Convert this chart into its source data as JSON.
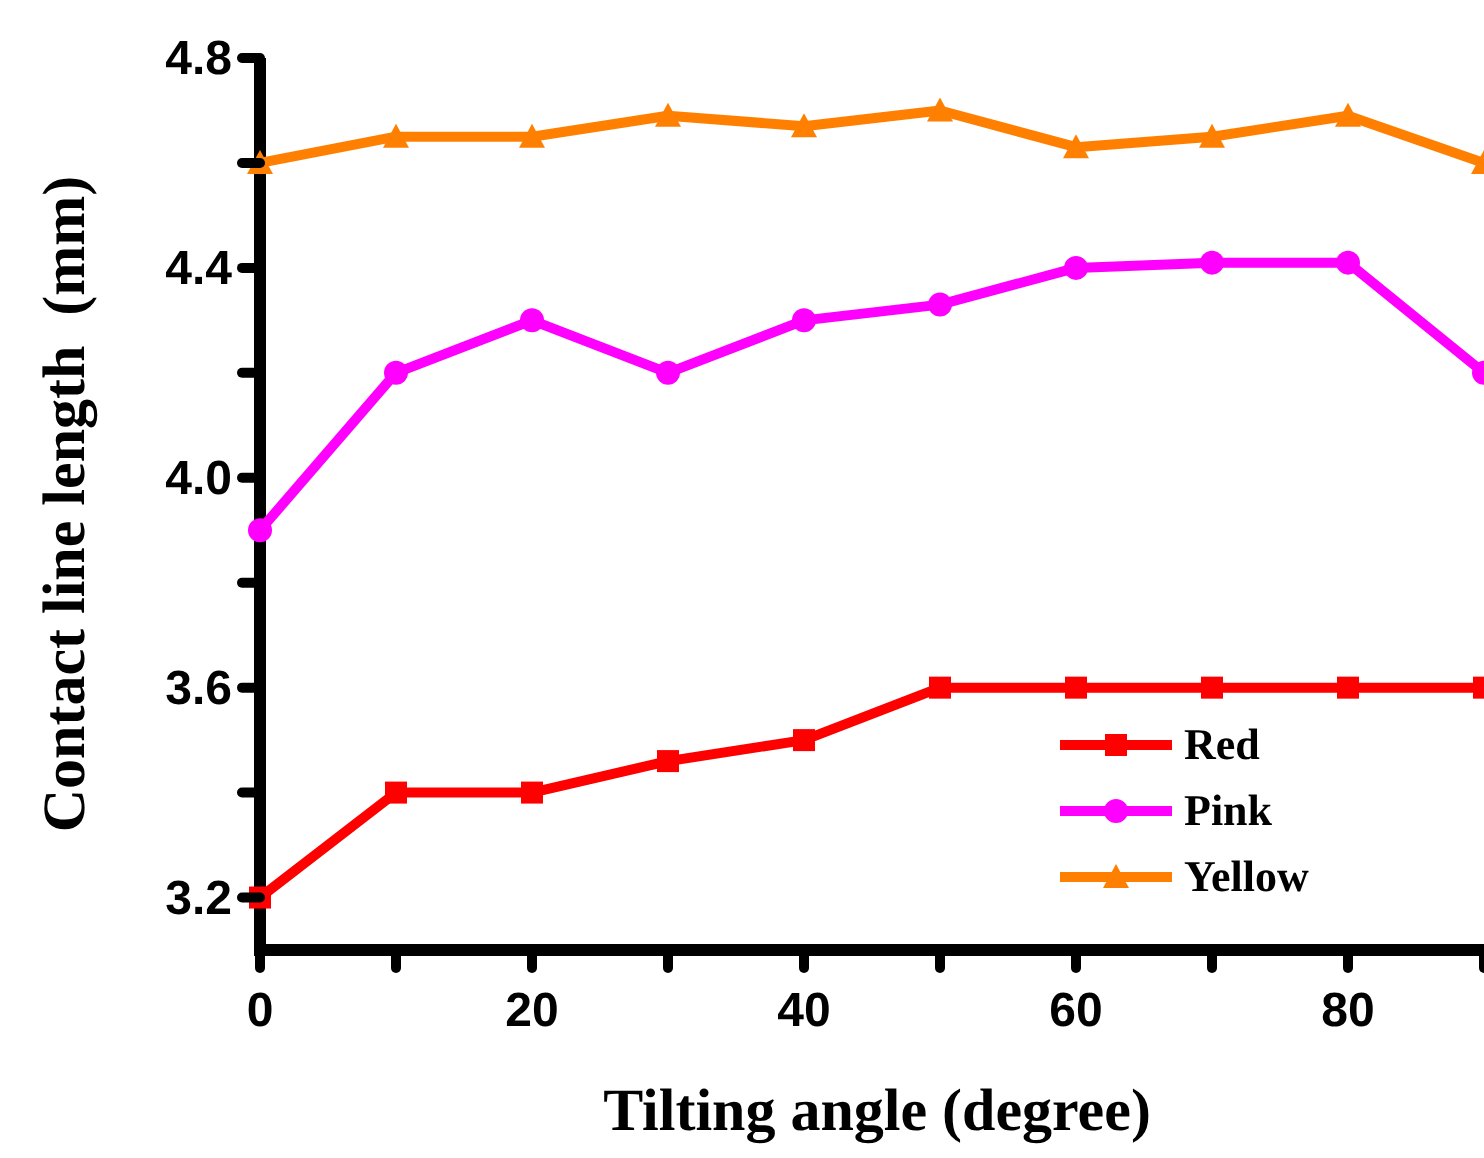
{
  "chart_data": {
    "type": "line",
    "xlabel": "Tilting angle (degree)",
    "ylabel": "Contact line length  (mm)",
    "x": [
      0,
      10,
      20,
      30,
      40,
      50,
      60,
      70,
      80,
      90
    ],
    "xlim": [
      0,
      90
    ],
    "ylim": [
      3.1,
      4.8
    ],
    "xticks": [
      0,
      {
        "value": 10,
        "label": null
      },
      20,
      {
        "value": 30,
        "label": null
      },
      40,
      {
        "value": 50,
        "label": null
      },
      60,
      {
        "value": 70,
        "label": null
      },
      80,
      {
        "value": 90,
        "label": null
      }
    ],
    "yticks": [
      3.2,
      {
        "value": 3.4,
        "label": null
      },
      3.6,
      {
        "value": 3.8,
        "label": null
      },
      {
        "value": 4,
        "label": "4.0"
      },
      {
        "value": 4.2,
        "label": null
      },
      4.4,
      {
        "value": 4.6,
        "label": null
      },
      4.8
    ],
    "legend": "bottom right",
    "grid": false,
    "series": [
      {
        "name": "Red",
        "color": "#ff0000",
        "marker": "square",
        "values": [
          3.2,
          3.4,
          3.4,
          3.46,
          3.5,
          3.6,
          3.6,
          3.6,
          3.6,
          3.6
        ]
      },
      {
        "name": "Pink",
        "color": "#ff00ff",
        "marker": "circle",
        "values": [
          3.9,
          4.2,
          4.3,
          4.2,
          4.3,
          4.33,
          4.4,
          4.41,
          4.41,
          4.2
        ]
      },
      {
        "name": "Yellow",
        "color": "#ff8000",
        "marker": "triangle",
        "values": [
          4.6,
          4.65,
          4.65,
          4.69,
          4.67,
          4.7,
          4.63,
          4.65,
          4.69,
          4.6
        ]
      }
    ]
  }
}
